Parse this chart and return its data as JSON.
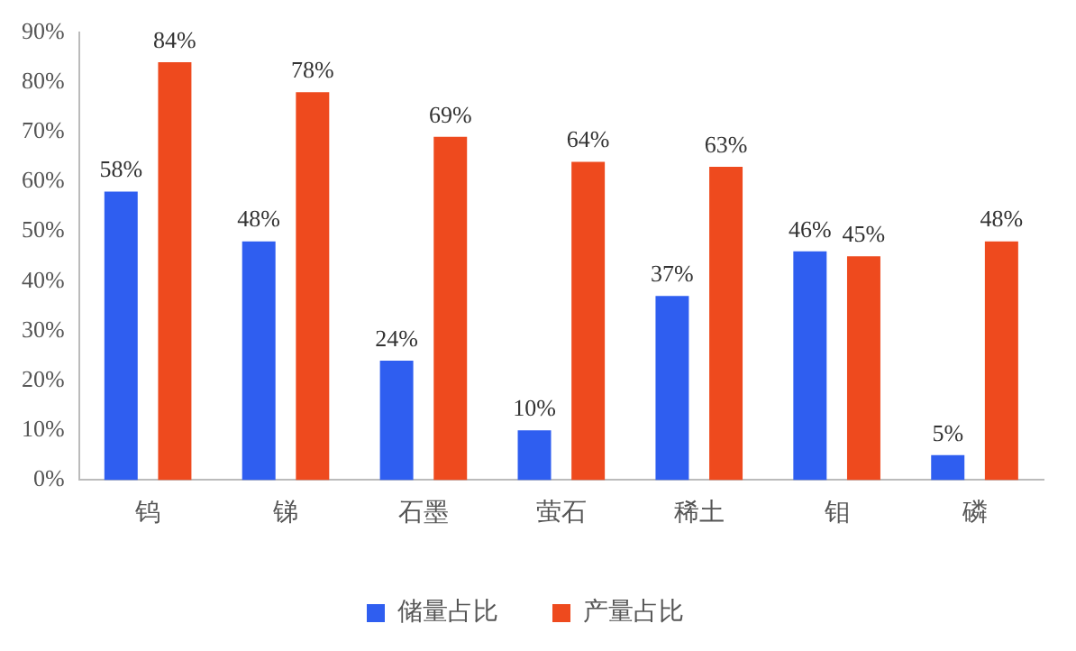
{
  "chart_data": {
    "type": "bar",
    "categories": [
      "钨",
      "锑",
      "石墨",
      "萤石",
      "稀土",
      "钼",
      "磷"
    ],
    "series": [
      {
        "name": "储量占比",
        "color": "#2f5ef0",
        "values": [
          58,
          48,
          24,
          10,
          37,
          46,
          5
        ],
        "value_labels": [
          "58%",
          "48%",
          "24%",
          "10%",
          "37%",
          "46%",
          "5%"
        ]
      },
      {
        "name": "产量占比",
        "color": "#ee4a1e",
        "values": [
          84,
          78,
          69,
          64,
          63,
          45,
          48
        ],
        "value_labels": [
          "84%",
          "78%",
          "69%",
          "64%",
          "63%",
          "45%",
          "48%"
        ]
      }
    ],
    "ylim": [
      0,
      90
    ],
    "yticks": [
      {
        "value": 0,
        "label": "0%"
      },
      {
        "value": 10,
        "label": "10%"
      },
      {
        "value": 20,
        "label": "20%"
      },
      {
        "value": 30,
        "label": "30%"
      },
      {
        "value": 40,
        "label": "40%"
      },
      {
        "value": 50,
        "label": "50%"
      },
      {
        "value": 60,
        "label": "60%"
      },
      {
        "value": 70,
        "label": "70%"
      },
      {
        "value": 80,
        "label": "80%"
      },
      {
        "value": 90,
        "label": "90%"
      }
    ],
    "grid": false,
    "legend": "bottom"
  }
}
